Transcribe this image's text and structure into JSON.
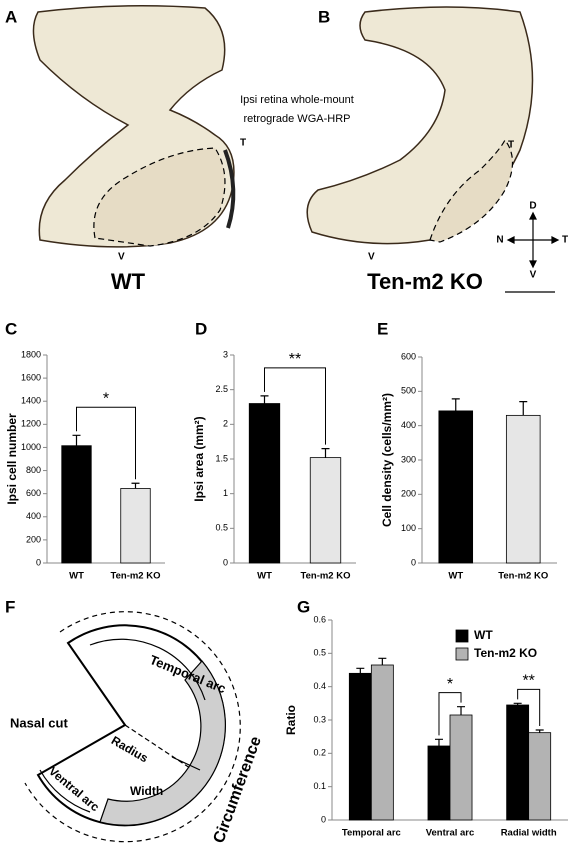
{
  "panels": {
    "label_a": "A",
    "label_b": "B",
    "wt_caption": "WT",
    "ko_caption": "Ten-m2 KO",
    "method_line1": "Ipsi retina whole-mount",
    "method_line2": "retrograde WGA-HRP",
    "a_temporal": "T",
    "a_ventral": "V",
    "b_temporal": "T",
    "b_ventral": "V",
    "compass": {
      "dorsal": "D",
      "nasal": "N",
      "temporal": "T",
      "ventral": "V"
    }
  },
  "diagram": {
    "label": "F",
    "temporal_arc": "Temporal arc",
    "radius": "Radius",
    "nasal_cut": "Nasal cut",
    "ventral_arc": "Ventral arc",
    "width": "Width",
    "circumference": "Circumference"
  },
  "chart_data": [
    {
      "type": "bar",
      "panel_label": "C",
      "ylabel": "Ipsi cell number",
      "categories": [
        "WT",
        "Ten-m2 KO"
      ],
      "values": [
        1015,
        645
      ],
      "errors": [
        90,
        45
      ],
      "colors": [
        "#000000",
        "#e6e6e6"
      ],
      "ylim": [
        0,
        1800
      ],
      "yticks": [
        0,
        200,
        400,
        600,
        800,
        1000,
        1200,
        1400,
        1600,
        1800
      ],
      "annotations": [
        "*"
      ]
    },
    {
      "type": "bar",
      "panel_label": "D",
      "ylabel": "Ipsi area (mm²)",
      "categories": [
        "WT",
        "Ten-m2 KO"
      ],
      "values": [
        2.3,
        1.52
      ],
      "errors": [
        0.11,
        0.13
      ],
      "colors": [
        "#000000",
        "#e6e6e6"
      ],
      "ylim": [
        0,
        3
      ],
      "yticks": [
        0,
        0.5,
        1,
        1.5,
        2,
        2.5,
        3
      ],
      "annotations": [
        "**"
      ]
    },
    {
      "type": "bar",
      "panel_label": "E",
      "ylabel": "Cell density (cells/mm²)",
      "categories": [
        "WT",
        "Ten-m2 KO"
      ],
      "values": [
        443,
        430
      ],
      "errors": [
        35,
        40
      ],
      "colors": [
        "#000000",
        "#e6e6e6"
      ],
      "ylim": [
        0,
        600
      ],
      "yticks": [
        0,
        100,
        200,
        300,
        400,
        500,
        600
      ]
    },
    {
      "type": "bar",
      "panel_label": "G",
      "ylabel": "Ratio",
      "categories": [
        "Temporal arc",
        "Ventral arc",
        "Radial width"
      ],
      "series": [
        {
          "name": "WT",
          "color": "#000000",
          "values": [
            0.44,
            0.222,
            0.345
          ],
          "errors": [
            0.015,
            0.02,
            0.005
          ]
        },
        {
          "name": "Ten-m2 KO",
          "color": "#b3b3b3",
          "values": [
            0.465,
            0.315,
            0.262
          ],
          "errors": [
            0.02,
            0.025,
            0.008
          ]
        }
      ],
      "ylim": [
        0,
        0.6
      ],
      "yticks": [
        0,
        0.1,
        0.2,
        0.3,
        0.4,
        0.5,
        0.6
      ],
      "annotations": [
        null,
        "*",
        "**"
      ],
      "legend": "top-right"
    }
  ]
}
